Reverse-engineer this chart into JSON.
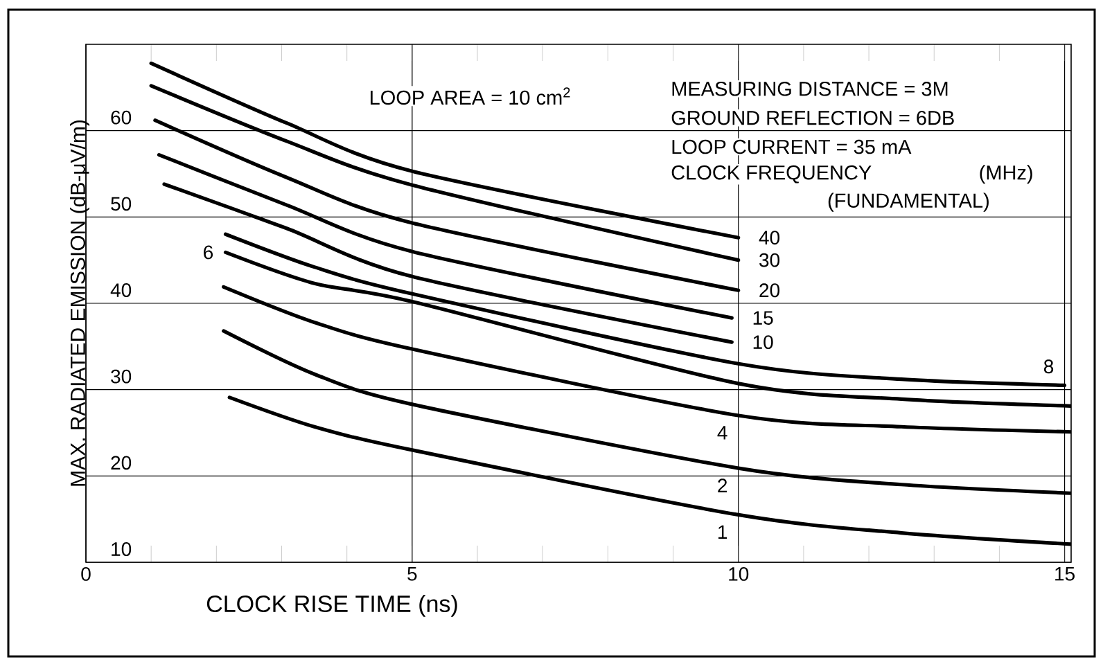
{
  "chart_data": {
    "type": "line",
    "xlabel": "CLOCK RISE TIME (ns)",
    "ylabel": "MAX. RADIATED EMISSION (dB-μV/m)",
    "xlim": [
      0,
      15.1
    ],
    "ylim": [
      10,
      70
    ],
    "xticks": [
      0,
      {
        "value": 1,
        "label": null
      },
      {
        "value": 2,
        "label": null
      },
      {
        "value": 3,
        "label": null
      },
      {
        "value": 4,
        "label": null
      },
      5,
      {
        "value": 6,
        "label": null
      },
      {
        "value": 7,
        "label": null
      },
      {
        "value": 8,
        "label": null
      },
      {
        "value": 9,
        "label": null
      },
      10,
      {
        "value": 11,
        "label": null
      },
      {
        "value": 12,
        "label": null
      },
      {
        "value": 13,
        "label": null
      },
      {
        "value": 14,
        "label": null
      },
      15
    ],
    "yticks": [
      10,
      20,
      30,
      40,
      50,
      60
    ],
    "grid": true,
    "legend": false,
    "marker": "none",
    "line_style": "solid",
    "annotations": [
      "LOOP AREA = 10 cm$^{2}$",
      "MEASURING DISTANCE = 3M",
      "GROUND REFLECTION = 6DB",
      "LOOP CURRENT = 35 mA",
      "CLOCK FREQUENCY",
      "(MHz)",
      "(FUNDAMENTAL)"
    ],
    "series": [
      {
        "name": "40",
        "color": "#000000",
        "x": [
          1.0,
          3.07,
          5,
          10
        ],
        "values": [
          67.8,
          60.9,
          55.3,
          47.6
        ]
      },
      {
        "name": "30",
        "color": "#000000",
        "x": [
          1.0,
          3.07,
          5,
          10
        ],
        "values": [
          65.2,
          58.8,
          53.7,
          45.0
        ]
      },
      {
        "name": "20",
        "color": "#000000",
        "x": [
          1.06,
          3.07,
          5,
          10
        ],
        "values": [
          61.2,
          54.6,
          49.3,
          41.5
        ]
      },
      {
        "name": "15",
        "color": "#000000",
        "x": [
          1.12,
          3.07,
          5,
          9.9
        ],
        "values": [
          57.2,
          51.4,
          46.0,
          38.3
        ]
      },
      {
        "name": "10",
        "color": "#000000",
        "x": [
          1.2,
          3.07,
          5,
          9.9
        ],
        "values": [
          53.8,
          48.7,
          43.1,
          35.5
        ]
      },
      {
        "name": "8",
        "color": "#000000",
        "x": [
          2.14,
          3.5,
          5,
          10,
          12.5,
          15.0
        ],
        "values": [
          48.0,
          44.2,
          41.1,
          33.0,
          31.2,
          30.5
        ]
      },
      {
        "name": "6",
        "color": "#000000",
        "x": [
          2.14,
          3.5,
          5,
          10,
          12.5,
          15.1
        ],
        "values": [
          45.9,
          42.3,
          40.2,
          30.7,
          28.9,
          28.1
        ]
      },
      {
        "name": "4",
        "color": "#000000",
        "x": [
          2.11,
          3.5,
          5,
          10,
          12.5,
          15.1
        ],
        "values": [
          41.9,
          37.8,
          34.7,
          27.0,
          25.7,
          25.1
        ]
      },
      {
        "name": "2",
        "color": "#000000",
        "x": [
          2.11,
          3.5,
          5,
          10,
          12.5,
          15.1
        ],
        "values": [
          36.8,
          31.8,
          28.3,
          20.9,
          19.0,
          18.0
        ]
      },
      {
        "name": "1",
        "color": "#000000",
        "x": [
          2.2,
          3.5,
          5,
          10,
          12.5,
          15.1
        ],
        "values": [
          29.1,
          25.7,
          23.0,
          15.5,
          13.4,
          12.1
        ]
      }
    ]
  }
}
